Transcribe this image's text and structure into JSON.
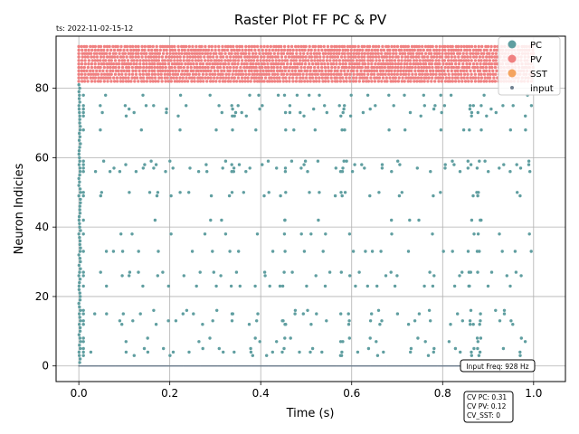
{
  "chart_data": {
    "type": "scatter",
    "title": "Raster Plot FF PC & PV",
    "timestamp": "ts: 2022-11-02-15-12",
    "xlabel": "Time (s)",
    "ylabel": "Neuron Indicies",
    "xlim": [
      -0.05,
      1.07
    ],
    "ylim": [
      -4.5,
      95
    ],
    "xticks": [
      0.0,
      0.2,
      0.4,
      0.6,
      0.8,
      1.0
    ],
    "xtick_labels": [
      "0.0",
      "0.2",
      "0.4",
      "0.6",
      "0.8",
      "1.0"
    ],
    "yticks": [
      0,
      20,
      40,
      60,
      80
    ],
    "ytick_labels": [
      "0",
      "20",
      "40",
      "60",
      "80"
    ],
    "grid": true,
    "legend_position": "top-right",
    "series": [
      {
        "name": "PC",
        "color": "#5f9ea0",
        "marker": "circle",
        "neuron_range": [
          1,
          81
        ],
        "time_range": [
          0.0,
          1.0
        ]
      },
      {
        "name": "PV",
        "color": "#f08080",
        "marker": "circle",
        "neuron_range": [
          82,
          92
        ],
        "time_range": [
          0.0,
          1.0
        ]
      },
      {
        "name": "SST",
        "color": "#f4a460",
        "marker": "circle",
        "neuron_range": [],
        "time_range": []
      },
      {
        "name": "input",
        "color": "#708090",
        "marker": "small-circle",
        "neuron_range": [
          0,
          0
        ],
        "time_range": [
          0.0,
          1.0
        ]
      }
    ],
    "annotations": {
      "input_freq": "Input Freq: 928 Hz",
      "cv_lines": [
        "CV PC: 0.31",
        "CV PV: 0.12",
        "CV_SST: 0"
      ]
    }
  }
}
